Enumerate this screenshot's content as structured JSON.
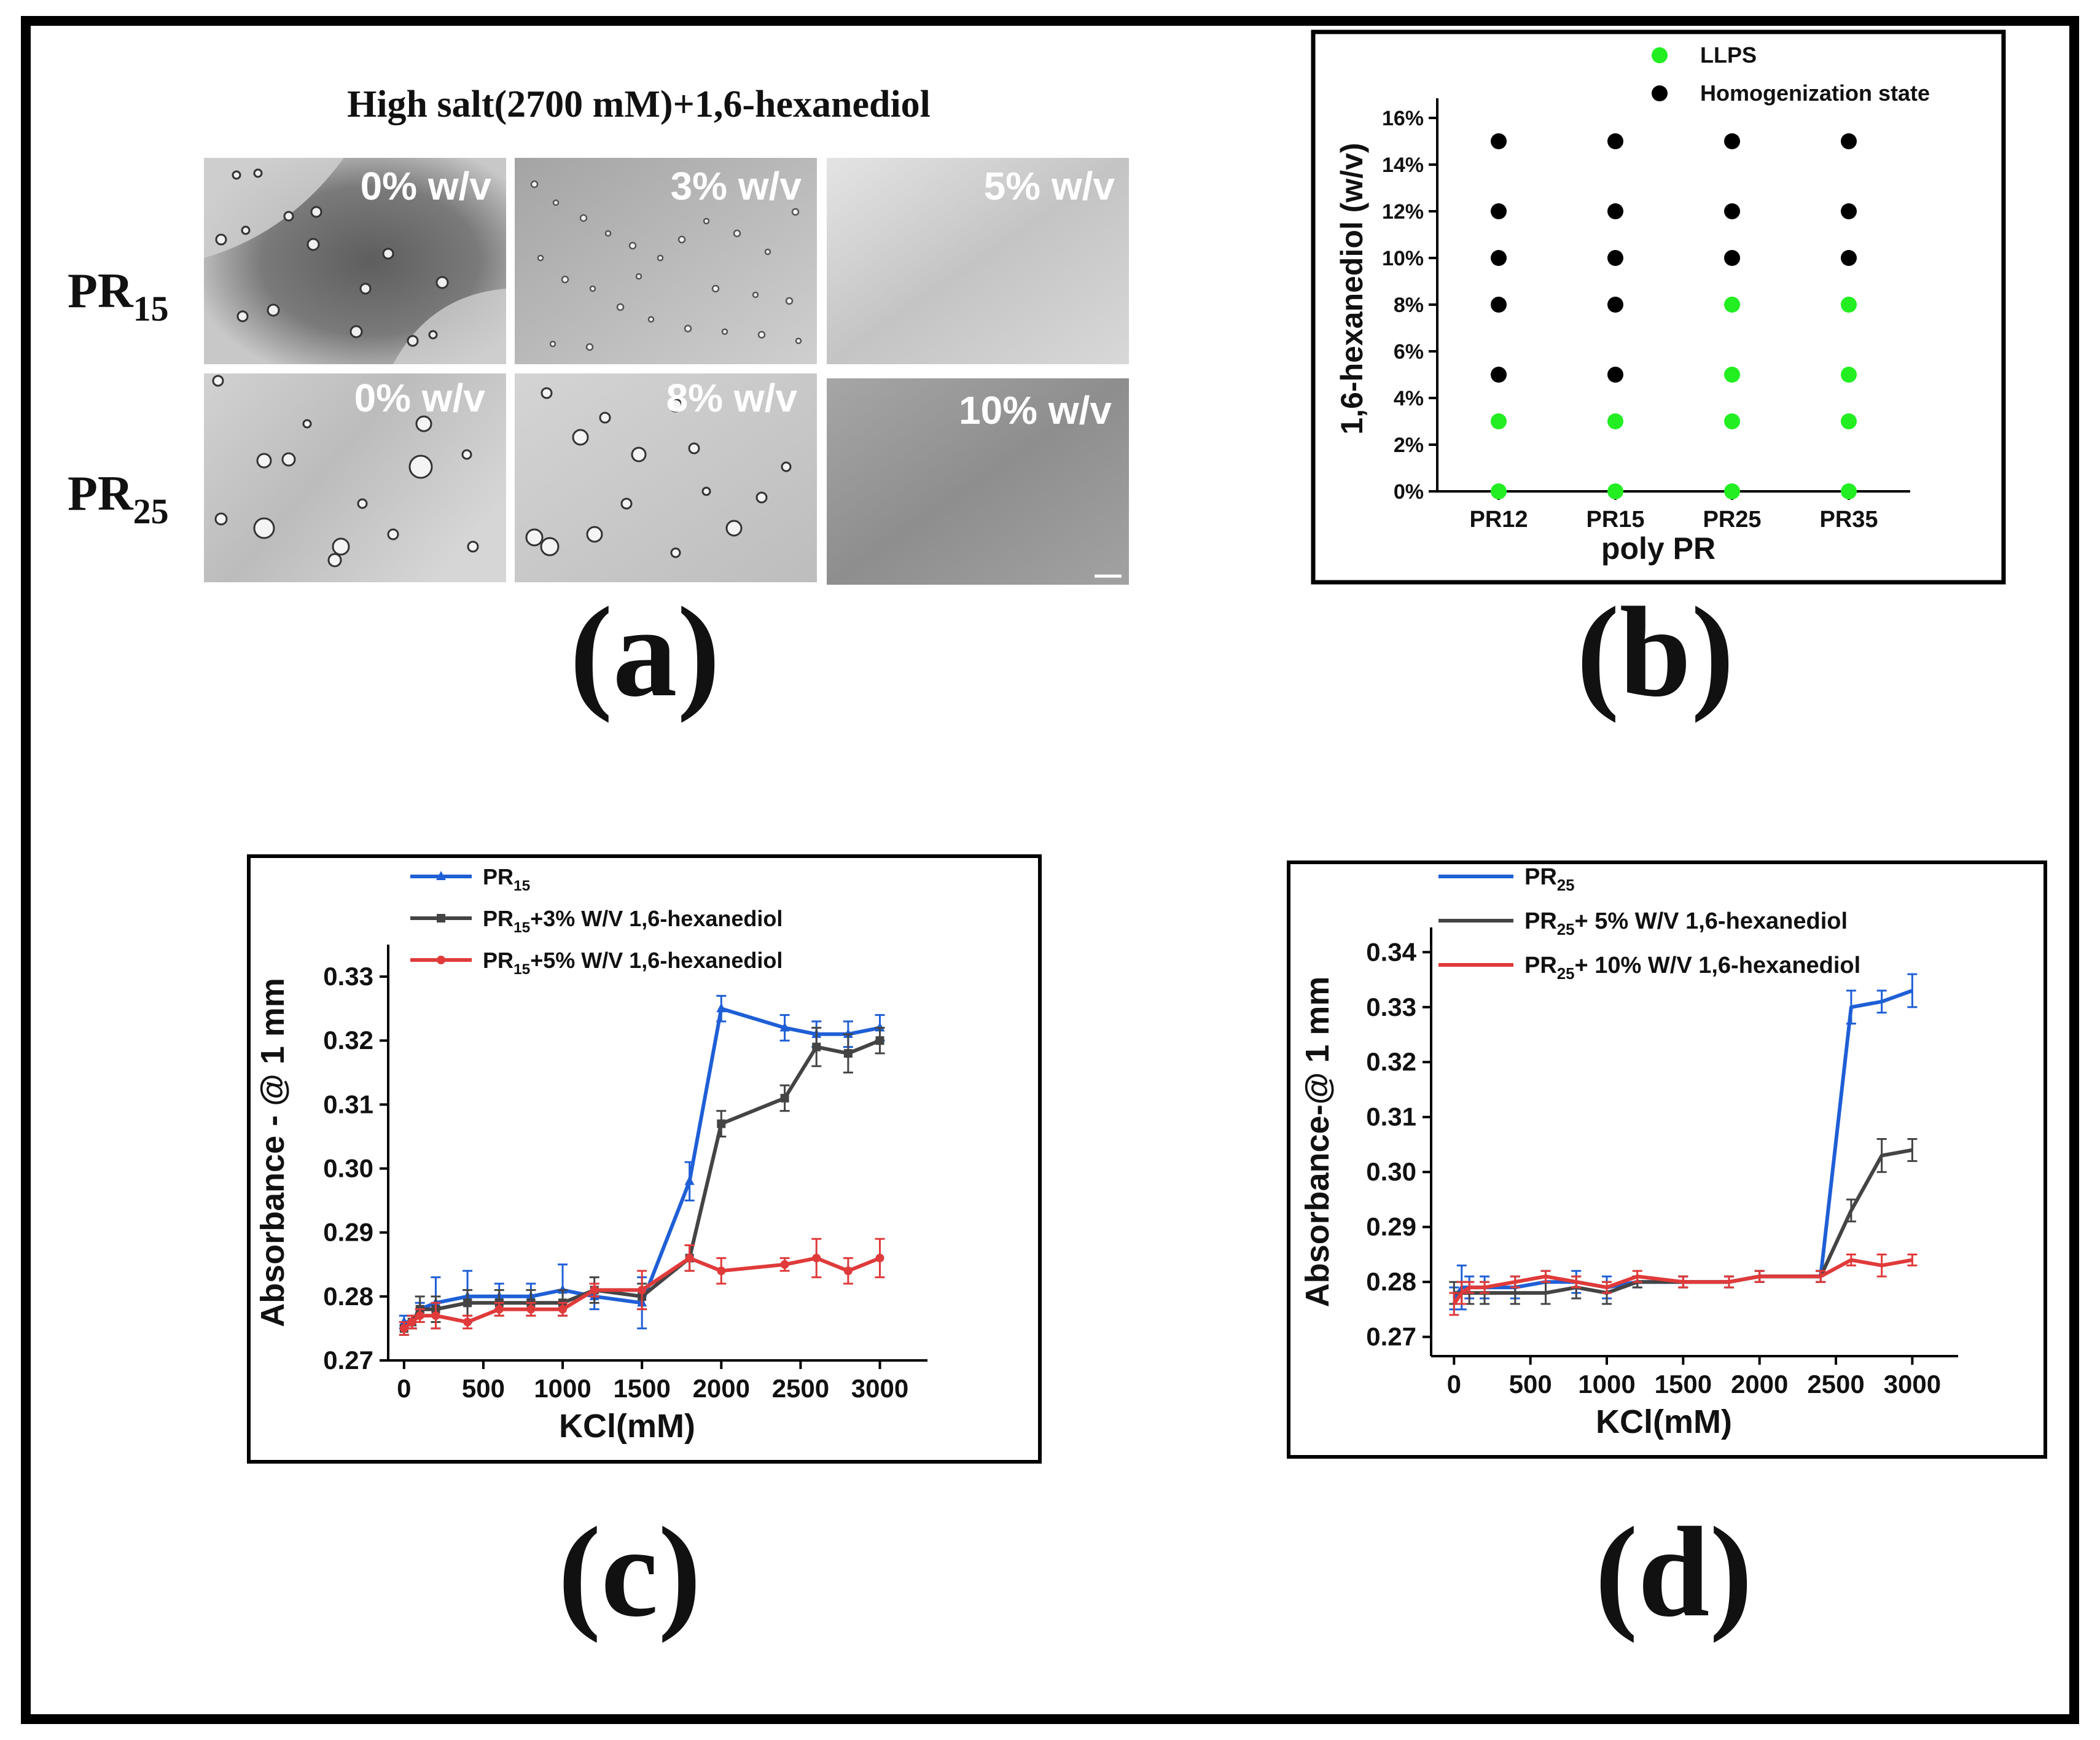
{
  "panel_a": {
    "title": "High salt(2700 mM)+1,6-hexanediol",
    "letter": "(a)",
    "rows": [
      {
        "label": "PR",
        "sub": "15",
        "tiles": [
          "0% w/v",
          "3% w/v",
          "5% w/v"
        ]
      },
      {
        "label": "PR",
        "sub": "25",
        "tiles": [
          "0% w/v",
          "8% w/v",
          "10% w/v"
        ]
      }
    ]
  },
  "panel_b": {
    "letter": "(b)"
  },
  "panel_c": {
    "letter": "(c)"
  },
  "panel_d": {
    "letter": "(d)"
  },
  "colors": {
    "blue": "#1f5fd6",
    "gray": "#444444",
    "red": "#e03a3a",
    "green": "#22ee22",
    "black": "#000000"
  },
  "chart_data": [
    {
      "type": "scatter",
      "xlabel": "poly PR",
      "ylabel": "1,6-hexanediol (w/v)",
      "categories": [
        "PR12",
        "PR15",
        "PR25",
        "PR35"
      ],
      "yticks": [
        "0%",
        "2%",
        "4%",
        "6%",
        "8%",
        "10%",
        "12%",
        "14%",
        "16%"
      ],
      "ylim": [
        0,
        16
      ],
      "legend_position": "top-right",
      "series": [
        {
          "name": "LLPS",
          "color": "#22ee22",
          "points": [
            [
              0,
              0
            ],
            [
              0,
              3
            ],
            [
              1,
              0
            ],
            [
              1,
              3
            ],
            [
              2,
              0
            ],
            [
              2,
              3
            ],
            [
              2,
              5
            ],
            [
              2,
              8
            ],
            [
              3,
              0
            ],
            [
              3,
              3
            ],
            [
              3,
              5
            ],
            [
              3,
              8
            ]
          ]
        },
        {
          "name": "Homogenization state",
          "color": "#000000",
          "points": [
            [
              0,
              5
            ],
            [
              0,
              8
            ],
            [
              0,
              10
            ],
            [
              0,
              12
            ],
            [
              0,
              15
            ],
            [
              1,
              5
            ],
            [
              1,
              8
            ],
            [
              1,
              10
            ],
            [
              1,
              12
            ],
            [
              1,
              15
            ],
            [
              2,
              10
            ],
            [
              2,
              12
            ],
            [
              2,
              15
            ],
            [
              3,
              10
            ],
            [
              3,
              12
            ],
            [
              3,
              15
            ]
          ]
        }
      ]
    },
    {
      "type": "line",
      "xlabel": "KCl(mM)",
      "ylabel": "Absorbance - @ 1 mm",
      "xlim": [
        -100,
        3300
      ],
      "ylim": [
        0.27,
        0.335
      ],
      "xticks": [
        "0",
        "500",
        "1000",
        "1500",
        "2000",
        "2500",
        "3000"
      ],
      "yticks": [
        "0.27",
        "0.28",
        "0.29",
        "0.30",
        "0.31",
        "0.32",
        "0.33"
      ],
      "legend_position": "top-left",
      "series": [
        {
          "name": "PR",
          "sub": "15",
          "suffix": "",
          "color": "#1f5fd6",
          "marker": "triangle",
          "x": [
            0,
            50,
            100,
            200,
            400,
            600,
            800,
            1000,
            1200,
            1500,
            1800,
            2000,
            2400,
            2600,
            2800,
            3000
          ],
          "y": [
            0.276,
            0.276,
            0.278,
            0.279,
            0.28,
            0.28,
            0.28,
            0.281,
            0.28,
            0.279,
            0.298,
            0.325,
            0.322,
            0.321,
            0.321,
            0.322
          ],
          "err": [
            0.001,
            0.001,
            0.001,
            0.004,
            0.004,
            0.002,
            0.002,
            0.004,
            0.002,
            0.004,
            0.003,
            0.002,
            0.002,
            0.002,
            0.002,
            0.002
          ]
        },
        {
          "name": "PR",
          "sub": "15",
          "suffix": "+3% W/V 1,6-hexanediol",
          "color": "#444444",
          "marker": "square",
          "x": [
            0,
            50,
            100,
            200,
            400,
            600,
            800,
            1000,
            1200,
            1500,
            1800,
            2000,
            2400,
            2600,
            2800,
            3000
          ],
          "y": [
            0.275,
            0.276,
            0.278,
            0.278,
            0.279,
            0.279,
            0.279,
            0.279,
            0.281,
            0.28,
            0.286,
            0.307,
            0.311,
            0.319,
            0.318,
            0.32
          ],
          "err": [
            0.001,
            0.001,
            0.002,
            0.002,
            0.002,
            0.002,
            0.002,
            0.002,
            0.002,
            0.002,
            0.002,
            0.002,
            0.002,
            0.003,
            0.003,
            0.002
          ]
        },
        {
          "name": "PR",
          "sub": "15",
          "suffix": "+5% W/V 1,6-hexanediol",
          "color": "#e03a3a",
          "marker": "circle",
          "x": [
            0,
            50,
            100,
            200,
            400,
            600,
            800,
            1000,
            1200,
            1500,
            1800,
            2000,
            2400,
            2600,
            2800,
            3000
          ],
          "y": [
            0.275,
            0.276,
            0.277,
            0.277,
            0.276,
            0.278,
            0.278,
            0.278,
            0.281,
            0.281,
            0.286,
            0.284,
            0.285,
            0.286,
            0.284,
            0.286
          ],
          "err": [
            0.001,
            0.001,
            0.001,
            0.002,
            0.001,
            0.001,
            0.001,
            0.001,
            0.001,
            0.003,
            0.002,
            0.002,
            0.001,
            0.003,
            0.002,
            0.003
          ]
        }
      ]
    },
    {
      "type": "line",
      "xlabel": "KCl(mM)",
      "ylabel": "Absorbance-@ 1 mm",
      "xlim": [
        -150,
        3300
      ],
      "ylim": [
        0.2665,
        0.3445
      ],
      "xticks": [
        "0",
        "500",
        "1000",
        "1500",
        "2000",
        "2500",
        "3000"
      ],
      "yticks": [
        "0.27",
        "0.28",
        "0.29",
        "0.30",
        "0.31",
        "0.32",
        "0.33",
        "0.34"
      ],
      "legend_position": "top-left",
      "series": [
        {
          "name": "PR",
          "sub": "25",
          "suffix": "",
          "color": "#1f5fd6",
          "marker": "none",
          "x": [
            0,
            50,
            100,
            200,
            400,
            600,
            800,
            1000,
            1200,
            1500,
            1800,
            2000,
            2400,
            2600,
            2800,
            3000
          ],
          "y": [
            0.277,
            0.279,
            0.279,
            0.279,
            0.279,
            0.28,
            0.28,
            0.279,
            0.28,
            0.28,
            0.28,
            0.281,
            0.281,
            0.33,
            0.331,
            0.333
          ],
          "err": [
            0.002,
            0.004,
            0.002,
            0.002,
            0.002,
            0.002,
            0.002,
            0.002,
            0.001,
            0.001,
            0.001,
            0.001,
            0.001,
            0.003,
            0.002,
            0.003
          ]
        },
        {
          "name": "PR",
          "sub": "25",
          "suffix": "+ 5% W/V 1,6-hexanediol",
          "color": "#444444",
          "marker": "none",
          "x": [
            0,
            50,
            100,
            200,
            400,
            600,
            800,
            1000,
            1200,
            1500,
            1800,
            2000,
            2400,
            2600,
            2800,
            3000
          ],
          "y": [
            0.278,
            0.278,
            0.278,
            0.278,
            0.278,
            0.278,
            0.279,
            0.278,
            0.28,
            0.28,
            0.28,
            0.281,
            0.281,
            0.293,
            0.303,
            0.304
          ],
          "err": [
            0.002,
            0.002,
            0.002,
            0.002,
            0.002,
            0.002,
            0.002,
            0.002,
            0.001,
            0.001,
            0.001,
            0.001,
            0.001,
            0.002,
            0.003,
            0.002
          ]
        },
        {
          "name": "PR",
          "sub": "25",
          "suffix": "+ 10% W/V 1,6-hexanediol",
          "color": "#e03a3a",
          "marker": "none",
          "x": [
            0,
            50,
            100,
            200,
            400,
            600,
            800,
            1000,
            1200,
            1500,
            1800,
            2000,
            2400,
            2600,
            2800,
            3000
          ],
          "y": [
            0.276,
            0.278,
            0.279,
            0.279,
            0.28,
            0.281,
            0.28,
            0.279,
            0.281,
            0.28,
            0.28,
            0.281,
            0.281,
            0.284,
            0.283,
            0.284
          ],
          "err": [
            0.002,
            0.002,
            0.001,
            0.001,
            0.001,
            0.001,
            0.001,
            0.001,
            0.001,
            0.001,
            0.001,
            0.001,
            0.001,
            0.001,
            0.002,
            0.001
          ]
        }
      ]
    }
  ]
}
